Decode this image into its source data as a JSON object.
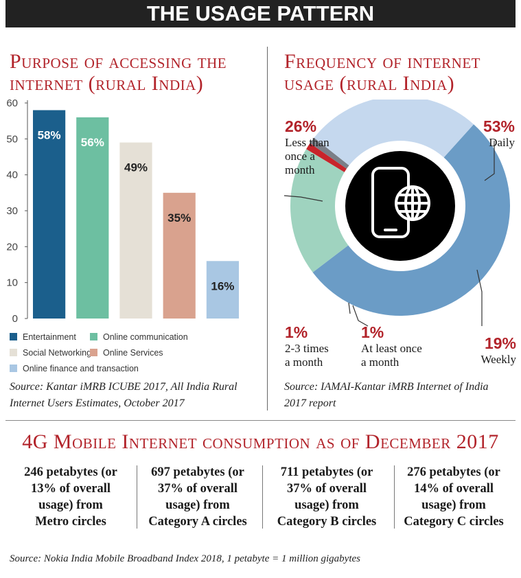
{
  "banner": {
    "title": "THE USAGE PATTERN"
  },
  "left": {
    "title_line1": "Purpose of accessing the",
    "title_line2": "internet (rural India)",
    "source_line1": "Source: Kantar iMRB ICUBE 2017, All India Rural",
    "source_line2": "Internet Users Estimates, October 2017"
  },
  "right": {
    "title_line1": "Frequency of internet",
    "title_line2": "usage (rural India)",
    "source_line1": "Source: IAMAI-Kantar iMRB Internet of India",
    "source_line2": "2017 report",
    "labels": {
      "daily": {
        "pct": "53%",
        "text": "Daily"
      },
      "weekly": {
        "pct": "19%",
        "text": "Weekly"
      },
      "once": {
        "pct": "1%",
        "line1": "At least once",
        "line2": "a month"
      },
      "twothree": {
        "pct": "1%",
        "line1": "2-3 times",
        "line2": "a month"
      },
      "less": {
        "pct": "26%",
        "line1": "Less than",
        "line2": "once a",
        "line3": "month"
      }
    },
    "center_icon": "mobile-globe-icon"
  },
  "chart_data": [
    {
      "type": "bar",
      "title": "Purpose of accessing the internet (rural India)",
      "categories": [
        "Entertainment",
        "Online communication",
        "Social Networking",
        "Online Services",
        "Online finance and transaction"
      ],
      "values": [
        58,
        56,
        49,
        35,
        16
      ],
      "data_labels": [
        "58%",
        "56%",
        "49%",
        "35%",
        "16%"
      ],
      "colors": [
        "#1b5f8c",
        "#6dbfa1",
        "#e5e0d6",
        "#d9a28e",
        "#a9c7e3"
      ],
      "label_colors": [
        "#ffffff",
        "#ffffff",
        "#222222",
        "#222222",
        "#222222"
      ],
      "yticks": [
        0,
        10,
        20,
        30,
        40,
        50,
        60
      ],
      "ylim": [
        0,
        60
      ],
      "grid": false,
      "legend": "bottom"
    },
    {
      "type": "pie",
      "title": "Frequency of internet usage (rural India)",
      "donut": true,
      "labels": [
        "Daily",
        "Weekly",
        "At least once a month",
        "2-3 times a month",
        "Less than once a month"
      ],
      "values": [
        53,
        19,
        1,
        1,
        26
      ],
      "colors": [
        "#6b9cc6",
        "#9fd3bf",
        "#c8242b",
        "#7a7f88",
        "#c5d8ee"
      ]
    }
  ],
  "bottom": {
    "title": "4G Mobile Internet consumption as of December 2017",
    "items": [
      {
        "l1": "246 petabytes (or",
        "l2": "13% of overall",
        "l3": "usage) from",
        "l4": "Metro circles"
      },
      {
        "l1": "697 petabytes (or",
        "l2": "37% of overall",
        "l3": "usage) from",
        "l4": "Category A circles"
      },
      {
        "l1": "711 petabytes (or",
        "l2": "37% of overall",
        "l3": "usage) from",
        "l4": "Category B circles"
      },
      {
        "l1": "276 petabytes (or",
        "l2": "14% of overall",
        "l3": "usage) from",
        "l4": "Category C circles"
      }
    ],
    "source": "Source: Nokia India Mobile Broadband Index 2018, 1 petabyte = 1 million gigabytes"
  }
}
